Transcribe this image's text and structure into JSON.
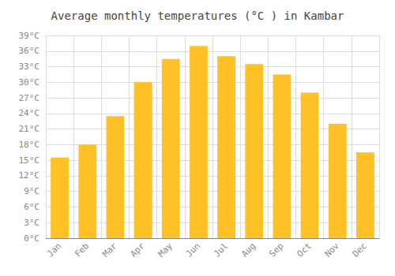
{
  "chart_data": {
    "type": "bar",
    "title": "Average monthly temperatures (°C ) in Kambar",
    "categories": [
      "Jan",
      "Feb",
      "Mar",
      "Apr",
      "May",
      "Jun",
      "Jul",
      "Aug",
      "Sep",
      "Oct",
      "Nov",
      "Dec"
    ],
    "values": [
      15.5,
      18.0,
      23.5,
      30.0,
      34.5,
      37.0,
      35.0,
      33.5,
      31.5,
      28.0,
      22.0,
      16.5
    ],
    "color": "#FFC125",
    "ylim": [
      0,
      39
    ],
    "yticks": [
      {
        "value": 0,
        "label": "0°C"
      },
      {
        "value": 3,
        "label": "3°C"
      },
      {
        "value": 6,
        "label": "6°C"
      },
      {
        "value": 9,
        "label": "9°C"
      },
      {
        "value": 12,
        "label": "12°C"
      },
      {
        "value": 15,
        "label": "15°C"
      },
      {
        "value": 18,
        "label": "18°C"
      },
      {
        "value": 21,
        "label": "21°C"
      },
      {
        "value": 24,
        "label": "24°C"
      },
      {
        "value": 27,
        "label": "27°C"
      },
      {
        "value": 30,
        "label": "30°C"
      },
      {
        "value": 33,
        "label": "33°C"
      },
      {
        "value": 36,
        "label": "36°C"
      },
      {
        "value": 39,
        "label": "39°C"
      }
    ],
    "grid": true
  }
}
